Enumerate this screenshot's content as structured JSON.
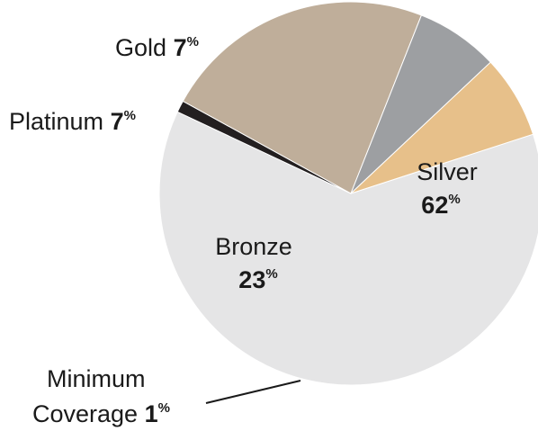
{
  "chart_data": {
    "type": "pie",
    "title": "",
    "slices": [
      {
        "label": "Silver",
        "value": 62,
        "color": "#e5e5e6"
      },
      {
        "label": "Minimum Coverage",
        "value": 1,
        "color": "#231f20"
      },
      {
        "label": "Bronze",
        "value": 23,
        "color": "#bfae9a"
      },
      {
        "label": "Platinum",
        "value": 7,
        "color": "#9d9fa2"
      },
      {
        "label": "Gold",
        "value": 7,
        "color": "#e7c08a"
      }
    ],
    "unit": "%",
    "start_angle_deg": -18,
    "direction": "clockwise"
  },
  "labels": {
    "silver": {
      "name": "Silver",
      "pct": "62",
      "sign": "%"
    },
    "bronze": {
      "name": "Bronze",
      "pct": "23",
      "sign": "%"
    },
    "platinum": {
      "name": "Platinum",
      "pct": "7",
      "sign": "%"
    },
    "gold": {
      "name": "Gold",
      "pct": "7",
      "sign": "%"
    },
    "minimum": {
      "line1": "Minimum",
      "line2": "Coverage",
      "pct": "1",
      "sign": "%"
    }
  }
}
